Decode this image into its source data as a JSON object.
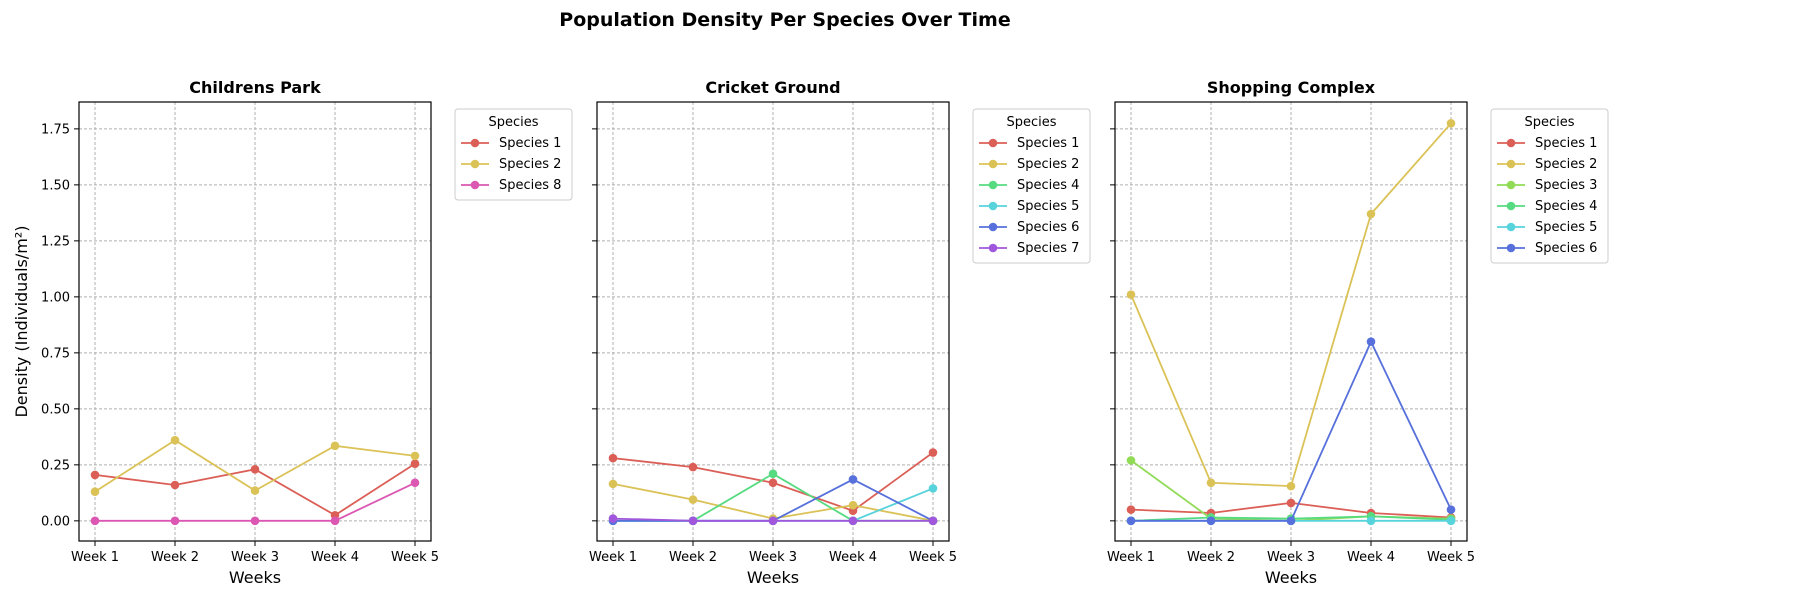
{
  "chart_data": {
    "title": "Population Density Per Species Over Time",
    "ylabel": "Density (Individuals/m²)",
    "xlabel": "Weeks",
    "ylim": [
      -0.09,
      1.87
    ],
    "yticks": [
      0.0,
      0.25,
      0.5,
      0.75,
      1.0,
      1.25,
      1.5,
      1.75
    ],
    "ytick_labels": [
      "0.00",
      "0.25",
      "0.50",
      "0.75",
      "1.00",
      "1.25",
      "1.50",
      "1.75"
    ],
    "categories": [
      "Week 1",
      "Week 2",
      "Week 3",
      "Week 4",
      "Week 5"
    ],
    "grid": true,
    "legend_title": "Species",
    "legend_placement": "outside-upper-right",
    "colors": {
      "Species 1": "#db5f57",
      "Species 2": "#dbc257",
      "Species 3": "#91db57",
      "Species 4": "#57db80",
      "Species 5": "#57d3db",
      "Species 6": "#5770db",
      "Species 7": "#a157db",
      "Species 8": "#db57b2"
    },
    "panels": [
      {
        "type": "line",
        "title": "Childrens Park",
        "series": [
          {
            "name": "Species 1",
            "values": [
              0.205,
              0.16,
              0.23,
              0.025,
              0.255
            ]
          },
          {
            "name": "Species 2",
            "values": [
              0.13,
              0.36,
              0.135,
              0.335,
              0.29
            ]
          },
          {
            "name": "Species 8",
            "values": [
              0.0,
              0.0,
              0.0,
              0.0,
              0.17
            ]
          }
        ]
      },
      {
        "type": "line",
        "title": "Cricket Ground",
        "series": [
          {
            "name": "Species 1",
            "values": [
              0.28,
              0.24,
              0.17,
              0.045,
              0.305
            ]
          },
          {
            "name": "Species 2",
            "values": [
              0.165,
              0.095,
              0.01,
              0.07,
              0.0
            ]
          },
          {
            "name": "Species 4",
            "values": [
              0.0,
              0.0,
              0.21,
              0.0,
              0.0
            ]
          },
          {
            "name": "Species 5",
            "values": [
              0.0,
              0.0,
              0.0,
              0.0,
              0.145
            ]
          },
          {
            "name": "Species 6",
            "values": [
              0.0,
              0.0,
              0.0,
              0.185,
              0.0
            ]
          },
          {
            "name": "Species 7",
            "values": [
              0.01,
              0.0,
              0.0,
              0.0,
              0.0
            ]
          }
        ]
      },
      {
        "type": "line",
        "title": "Shopping Complex",
        "series": [
          {
            "name": "Species 1",
            "values": [
              0.05,
              0.035,
              0.08,
              0.035,
              0.015
            ]
          },
          {
            "name": "Species 2",
            "values": [
              1.01,
              0.17,
              0.155,
              1.37,
              1.775
            ]
          },
          {
            "name": "Species 3",
            "values": [
              0.27,
              0.01,
              0.0,
              0.02,
              0.01
            ]
          },
          {
            "name": "Species 4",
            "values": [
              0.0,
              0.015,
              0.01,
              0.02,
              0.005
            ]
          },
          {
            "name": "Species 5",
            "values": [
              0.0,
              0.0,
              0.0,
              0.0,
              0.0
            ]
          },
          {
            "name": "Species 6",
            "values": [
              0.0,
              0.0,
              0.0,
              0.8,
              0.05
            ]
          }
        ]
      }
    ]
  }
}
